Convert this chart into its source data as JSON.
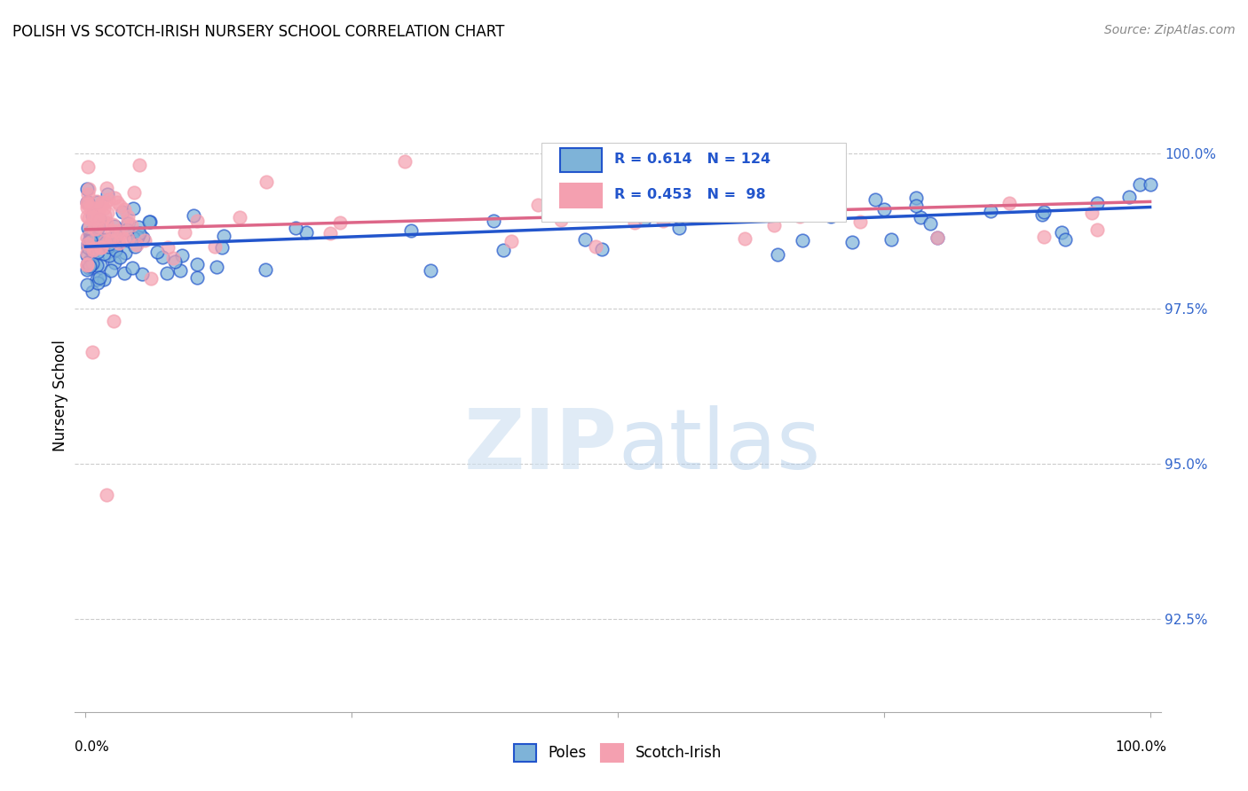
{
  "title": "POLISH VS SCOTCH-IRISH NURSERY SCHOOL CORRELATION CHART",
  "source": "Source: ZipAtlas.com",
  "ylabel": "Nursery School",
  "y_ticks": [
    92.5,
    95.0,
    97.5,
    100.0
  ],
  "y_tick_labels": [
    "92.5%",
    "95.0%",
    "97.5%",
    "100.0%"
  ],
  "x_range": [
    0.0,
    100.0
  ],
  "y_range": [
    91.0,
    101.2
  ],
  "poles_color": "#7eb3d8",
  "scotch_color": "#f4a0b0",
  "poles_line_color": "#2255cc",
  "scotch_line_color": "#dd6688",
  "poles_R": 0.614,
  "poles_N": 124,
  "scotch_R": 0.453,
  "scotch_N": 98,
  "legend_text_color": "#2255cc",
  "background_color": "#ffffff"
}
